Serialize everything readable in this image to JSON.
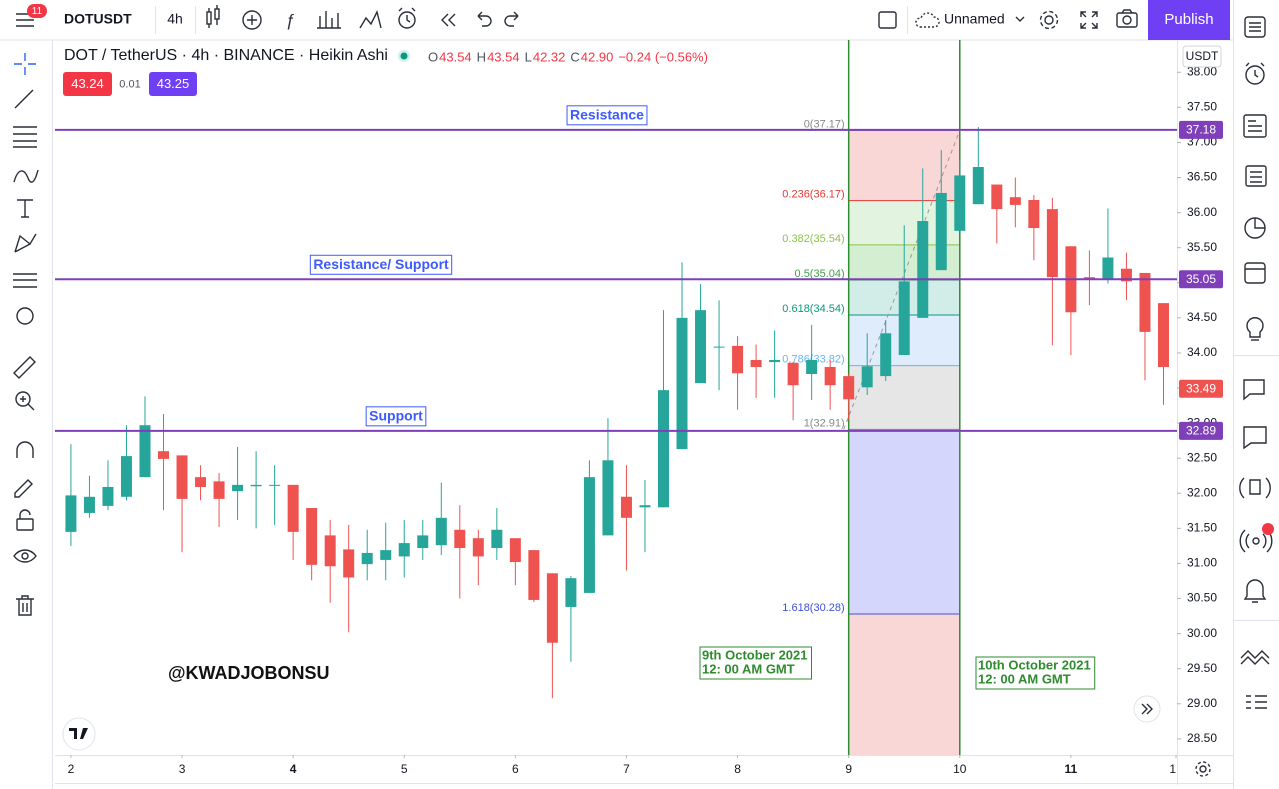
{
  "toolbar": {
    "notifications": "11",
    "symbol": "DOTUSDT",
    "interval": "4h",
    "layout": "Unnamed",
    "publish": "Publish"
  },
  "header": {
    "title": "DOT / TetherUS · 4h · BINANCE · Heikin Ashi",
    "ohlc": [
      {
        "k": "O",
        "v": "43.54"
      },
      {
        "k": "H",
        "v": "43.54"
      },
      {
        "k": "L",
        "v": "42.32"
      },
      {
        "k": "C",
        "v": "42.90"
      }
    ],
    "change": "−0.24 (−0.56%)"
  },
  "quote": {
    "sell": "43.24",
    "spread": "0.01",
    "buy": "43.25"
  },
  "currency": "USDT",
  "watermark": "@KWADJOBONSU",
  "chart_data": {
    "type": "candlestick",
    "up_color": "#26a69a",
    "down_color": "#ef5350",
    "open": [
      31.45,
      31.72,
      31.82,
      31.95,
      32.23,
      32.6,
      32.54,
      32.23,
      32.17,
      32.03,
      32.1,
      32.11,
      32.12,
      31.79,
      31.4,
      31.2,
      30.99,
      31.05,
      31.1,
      31.22,
      31.26,
      31.48,
      31.36,
      31.22,
      31.36,
      31.19,
      30.86,
      30.38,
      30.58,
      31.4,
      31.95,
      31.8,
      31.8,
      32.63,
      33.57,
      34.08,
      34.1,
      33.9,
      33.87,
      33.86,
      33.7,
      33.8,
      33.67,
      33.51,
      33.67,
      33.97,
      34.5,
      35.18,
      35.74,
      36.12,
      36.4,
      36.22,
      36.18,
      36.05,
      35.52,
      35.08,
      35.05,
      35.2,
      35.14,
      34.71
    ],
    "high": [
      32.7,
      32.25,
      32.47,
      32.97,
      33.38,
      33.13,
      32.54,
      32.4,
      32.29,
      32.66,
      32.6,
      32.4,
      32.12,
      31.79,
      31.62,
      31.55,
      31.48,
      31.58,
      31.62,
      31.62,
      32.15,
      31.83,
      31.48,
      31.79,
      31.36,
      31.19,
      30.86,
      30.82,
      32.47,
      33.07,
      32.4,
      32.19,
      34.61,
      35.29,
      34.98,
      34.75,
      34.24,
      34.12,
      34.32,
      33.87,
      34.4,
      33.9,
      33.7,
      34.28,
      34.47,
      35.82,
      36.63,
      36.89,
      36.75,
      37.22,
      36.4,
      36.5,
      36.25,
      36.21,
      35.52,
      35.46,
      36.06,
      35.43,
      35.14,
      34.71
    ],
    "low": [
      31.25,
      31.65,
      31.76,
      31.9,
      32.23,
      31.76,
      31.16,
      31.9,
      31.52,
      31.62,
      31.5,
      31.55,
      31.05,
      30.76,
      30.44,
      30.02,
      30.76,
      30.76,
      30.8,
      31.05,
      31.12,
      30.5,
      30.69,
      31.05,
      30.69,
      30.45,
      29.08,
      29.6,
      30.58,
      31.4,
      30.9,
      31.16,
      31.8,
      32.63,
      33.57,
      33.47,
      33.19,
      33.36,
      33.36,
      33.04,
      33.33,
      33.19,
      33.04,
      33.4,
      33.6,
      33.97,
      34.5,
      35.18,
      35.74,
      36.12,
      35.56,
      35.79,
      35.32,
      34.11,
      33.97,
      34.68,
      34.99,
      34.75,
      33.61,
      33.26
    ],
    "close": [
      31.97,
      31.95,
      32.09,
      32.53,
      32.97,
      32.49,
      31.92,
      32.09,
      31.92,
      32.12,
      32.12,
      32.12,
      31.45,
      30.98,
      30.96,
      30.8,
      31.15,
      31.19,
      31.29,
      31.4,
      31.65,
      31.22,
      31.1,
      31.48,
      31.02,
      30.48,
      29.87,
      30.79,
      32.23,
      32.47,
      31.65,
      31.83,
      33.47,
      34.5,
      34.61,
      34.09,
      33.71,
      33.8,
      33.9,
      33.54,
      33.9,
      33.54,
      33.34,
      33.81,
      34.28,
      35.02,
      35.88,
      36.28,
      36.53,
      36.65,
      36.05,
      36.11,
      35.78,
      35.08,
      34.58,
      35.05,
      35.36,
      35.02,
      34.3,
      33.8
    ],
    "xlim": [
      -0.86,
      59.73
    ],
    "ylim": [
      28.27,
      38.46
    ],
    "xticks": [
      {
        "value": 0,
        "label": "2"
      },
      {
        "value": 6,
        "label": "3"
      },
      {
        "value": 12,
        "label": "4",
        "bold": true
      },
      {
        "value": 18,
        "label": "5"
      },
      {
        "value": 24,
        "label": "6"
      },
      {
        "value": 30,
        "label": "7"
      },
      {
        "value": 36,
        "label": "8"
      },
      {
        "value": 42,
        "label": "9"
      },
      {
        "value": 48,
        "label": "10"
      },
      {
        "value": 54,
        "label": "11",
        "bold": true
      },
      {
        "value": 60,
        "label": "1"
      }
    ],
    "yticks": [
      {
        "value": 28.5,
        "label": "28.50"
      },
      {
        "value": 29,
        "label": "29.00"
      },
      {
        "value": 29.5,
        "label": "29.50"
      },
      {
        "value": 30,
        "label": "30.00"
      },
      {
        "value": 30.5,
        "label": "30.50"
      },
      {
        "value": 31,
        "label": "31.00"
      },
      {
        "value": 31.5,
        "label": "31.50"
      },
      {
        "value": 32,
        "label": "32.00"
      },
      {
        "value": 32.5,
        "label": "32.50"
      },
      {
        "value": 33,
        "label": "33.00"
      },
      {
        "value": 33.5,
        "label": "33.50"
      },
      {
        "value": 34,
        "label": "34.00"
      },
      {
        "value": 34.5,
        "label": "34.50"
      },
      {
        "value": 35,
        "label": "35.00"
      },
      {
        "value": 35.5,
        "label": "35.50"
      },
      {
        "value": 36,
        "label": "36.00"
      },
      {
        "value": 36.5,
        "label": "36.50"
      },
      {
        "value": 37,
        "label": "37.00"
      },
      {
        "value": 37.5,
        "label": "37.50"
      },
      {
        "value": 38,
        "label": "38.00"
      }
    ],
    "levels": [
      {
        "label": "Resistance",
        "value": 37.18
      },
      {
        "label": "Resistance/ Support",
        "value": 35.05
      },
      {
        "label": "Support",
        "value": 32.89
      }
    ],
    "level_color": "#7e3fb8",
    "last_price": 33.49,
    "fib": [
      {
        "label": "0(37.17)",
        "value": 37.17,
        "color": "#888888",
        "fill": "#f8d3d3"
      },
      {
        "label": "0.236(36.17)",
        "value": 36.17,
        "color": "#e53935",
        "fill": "#dff2dc"
      },
      {
        "label": "0.382(35.54)",
        "value": 35.54,
        "color": "#8bc34a",
        "fill": "#cfeccd"
      },
      {
        "label": "0.5(35.04)",
        "value": 35.04,
        "color": "#43a047",
        "fill": "#cdebe6"
      },
      {
        "label": "0.618(34.54)",
        "value": 34.54,
        "color": "#089981",
        "fill": "#dbeafb"
      },
      {
        "label": "0.786(33.82)",
        "value": 33.82,
        "color": "#64b5f6",
        "fill": "#e3e3e3"
      },
      {
        "label": "1(32.91)",
        "value": 32.91,
        "color": "#888888",
        "fill": "#cfd3fb"
      },
      {
        "label": "1.618(30.28)",
        "value": 30.28,
        "color": "#3f51d5",
        "fill": "#f8d3d3"
      }
    ],
    "events": [
      {
        "date": "9th October 2021",
        "time": "12: 00 AM GMT",
        "x": 42
      },
      {
        "date": "10th October 2021",
        "time": "12: 00 AM GMT",
        "x": 48
      }
    ],
    "event_color": "#2e8b2e"
  }
}
